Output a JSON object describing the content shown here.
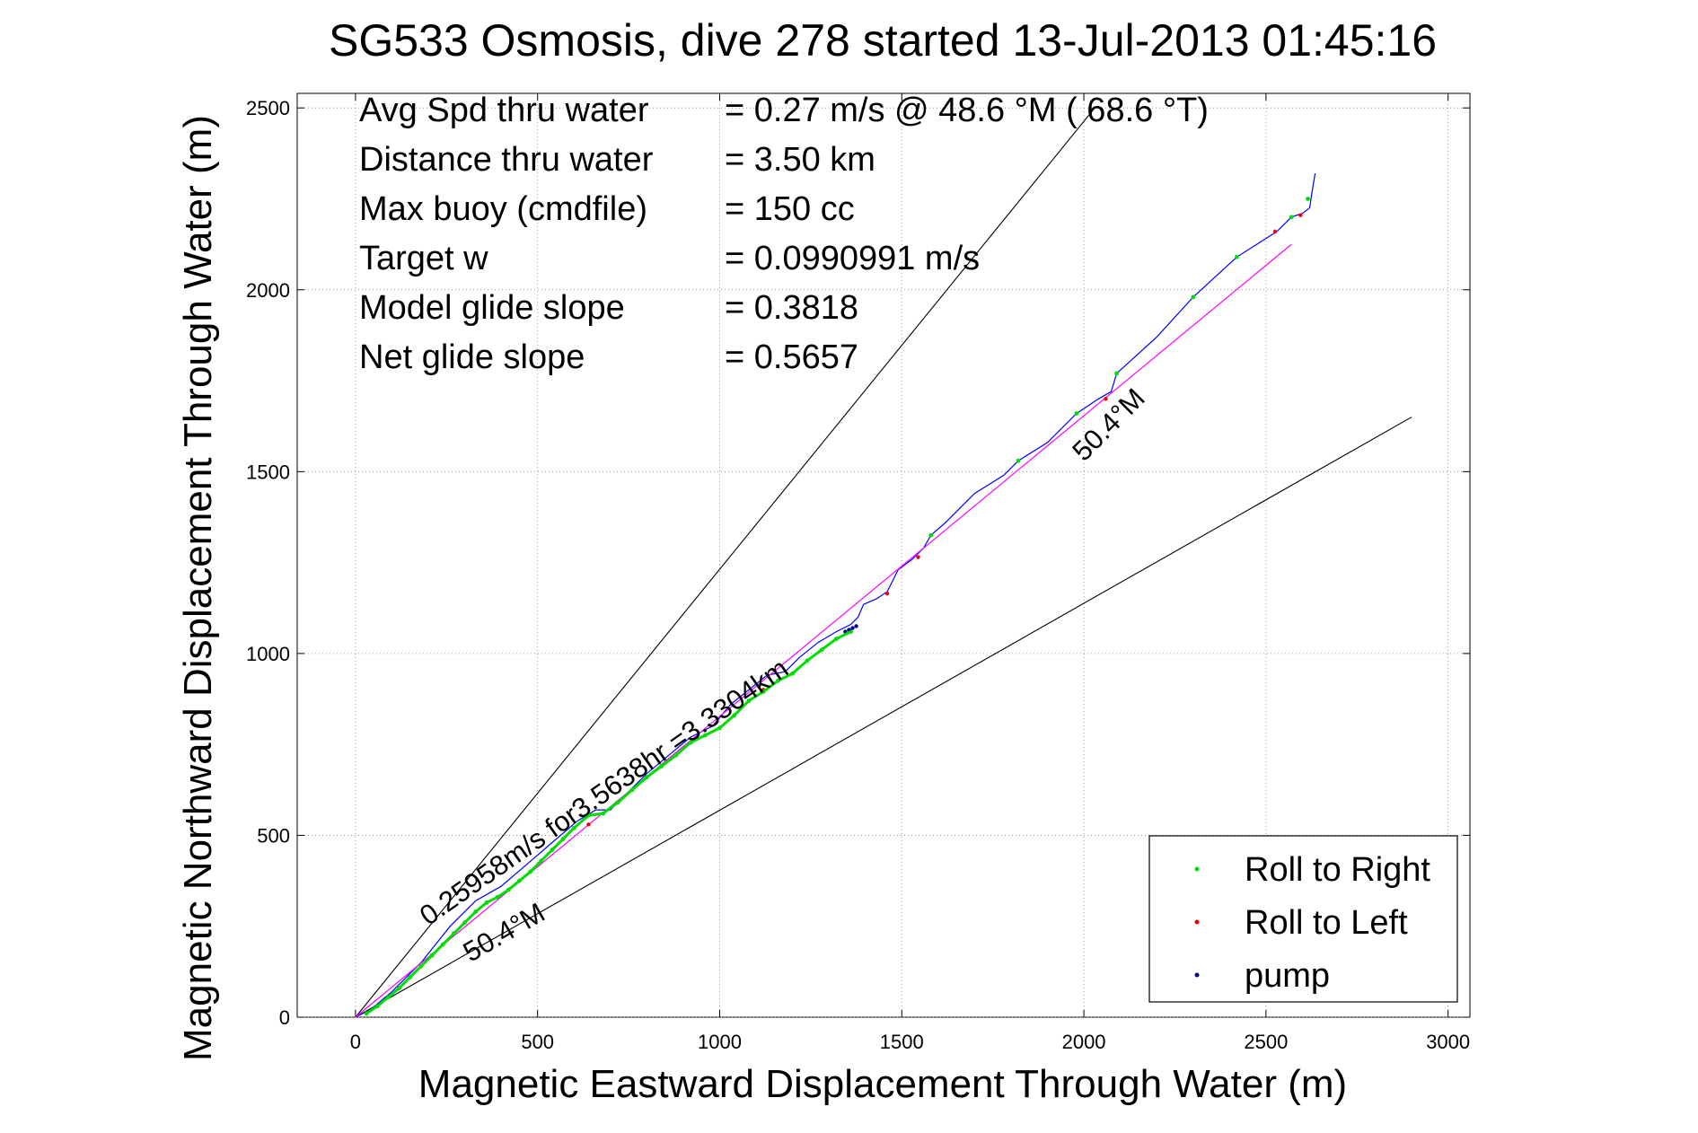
{
  "chart_data": {
    "type": "scatter",
    "title": "SG533 Osmosis, dive 278 started 13-Jul-2013 01:45:16",
    "xlabel": "Magnetic Eastward Displacement Through Water (m)",
    "ylabel": "Magnetic Northward Displacement Through Water (m)",
    "xlim": [
      -160,
      3060
    ],
    "ylim": [
      0,
      2540
    ],
    "xticks": [
      0,
      500,
      1000,
      1500,
      2000,
      2500,
      3000
    ],
    "yticks": [
      0,
      500,
      1000,
      1500,
      2000,
      2500
    ],
    "xtick_labels": [
      "0",
      "500",
      "1000",
      "1500",
      "2000",
      "2500",
      "3000"
    ],
    "ytick_labels": [
      "0",
      "500",
      "1000",
      "1500",
      "2000",
      "2500"
    ],
    "grid": true,
    "info_lines": [
      {
        "label": "Avg Spd thru water",
        "value": "=  0.27 m/s @  48.6 °M ( 68.6 °T)"
      },
      {
        "label": "Distance thru water",
        "value": "=  3.50 km"
      },
      {
        "label": "Max buoy (cmdfile)",
        "value": "= 150 cc"
      },
      {
        "label": "Target w",
        "value": "= 0.0990991 m/s"
      },
      {
        "label": "Model glide slope",
        "value": "= 0.3818"
      },
      {
        "label": "Net glide slope",
        "value": "= 0.5657"
      }
    ],
    "annotations": [
      {
        "text": "0.25958m/s for3.5638hr =3.3304km",
        "x": 200,
        "y": 250,
        "angle_deg": 35
      },
      {
        "text": "50.4°M",
        "x": 315,
        "y": 150,
        "angle_deg": 30
      },
      {
        "text": "50.4°M",
        "x": 2000,
        "y": 1525,
        "angle_deg": 45
      }
    ],
    "legend": {
      "position": "bottom-right",
      "entries": [
        {
          "name": "Roll to Right",
          "color": "#00dd00"
        },
        {
          "name": "Roll to Left",
          "color": "#ee0000"
        },
        {
          "name": "pump",
          "color": "#000088"
        }
      ]
    },
    "reference_lines": [
      {
        "x": [
          0,
          2030
        ],
        "y": [
          0,
          2500
        ],
        "color": "#000000"
      },
      {
        "x": [
          0,
          2900
        ],
        "y": [
          0,
          1650
        ],
        "color": "#000000"
      }
    ],
    "series": [
      {
        "role": "track",
        "color": "#0000ff",
        "x": [
          0,
          40,
          100,
          180,
          260,
          330,
          400,
          470,
          540,
          610,
          660,
          700,
          750,
          800,
          860,
          920,
          980,
          1030,
          1080,
          1130,
          1180,
          1220,
          1270,
          1320,
          1360,
          1380,
          1395,
          1430,
          1460,
          1490,
          1530,
          1560,
          1580,
          1620,
          1700,
          1780,
          1820,
          1900,
          1980,
          2040,
          2075,
          2090,
          2200,
          2300,
          2420,
          2530,
          2570,
          2600,
          2620,
          2625,
          2635
        ],
        "y": [
          0,
          20,
          70,
          150,
          250,
          320,
          360,
          420,
          480,
          540,
          570,
          570,
          620,
          670,
          720,
          770,
          800,
          860,
          900,
          940,
          950,
          990,
          1030,
          1060,
          1080,
          1100,
          1135,
          1150,
          1170,
          1230,
          1260,
          1290,
          1325,
          1360,
          1440,
          1490,
          1530,
          1580,
          1660,
          1700,
          1720,
          1770,
          1870,
          1980,
          2090,
          2160,
          2200,
          2210,
          2225,
          2260,
          2320
        ]
      },
      {
        "role": "model",
        "color": "#ff00ff",
        "x": [
          0,
          2570
        ],
        "y": [
          0,
          2125
        ]
      },
      {
        "name": "Roll to Right",
        "color": "#00dd00",
        "x": [
          30,
          60,
          90,
          120,
          150,
          180,
          210,
          240,
          270,
          300,
          330,
          360,
          390,
          420,
          450,
          480,
          510,
          540,
          570,
          600,
          640,
          680,
          720,
          760,
          800,
          840,
          880,
          920,
          960,
          1000,
          1040,
          1080,
          1120,
          1160,
          1200,
          1240,
          1280,
          1320,
          1360,
          1580,
          1820,
          1980,
          2090,
          2300,
          2420,
          2570,
          2615
        ],
        "y": [
          10,
          30,
          55,
          80,
          110,
          140,
          170,
          200,
          230,
          260,
          290,
          315,
          330,
          350,
          375,
          400,
          430,
          460,
          490,
          520,
          555,
          560,
          590,
          625,
          660,
          690,
          720,
          755,
          775,
          795,
          830,
          870,
          895,
          925,
          945,
          980,
          1010,
          1040,
          1060,
          1325,
          1530,
          1660,
          1770,
          1980,
          2090,
          2200,
          2250
        ]
      },
      {
        "name": "Roll to Left",
        "color": "#ee0000",
        "x": [
          640,
          1120,
          1460,
          1545,
          2060,
          2525,
          2595
        ],
        "y": [
          530,
          900,
          1165,
          1265,
          1700,
          2160,
          2205
        ]
      },
      {
        "name": "pump",
        "color": "#000088",
        "x": [
          1345,
          1355,
          1365,
          1375
        ],
        "y": [
          1060,
          1065,
          1070,
          1075
        ]
      }
    ]
  }
}
